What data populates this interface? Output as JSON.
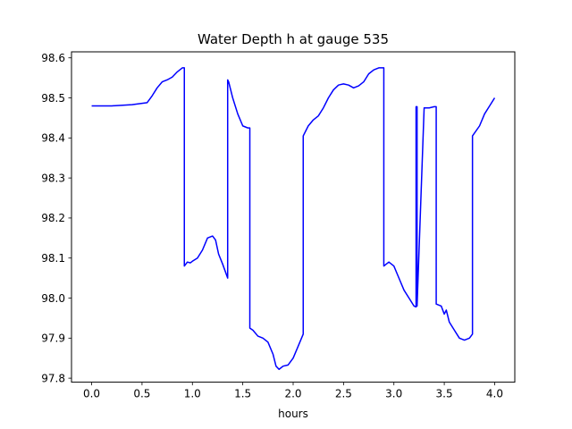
{
  "chart_data": {
    "type": "line",
    "title": "Water Depth h at gauge 535",
    "xlabel": "hours",
    "ylabel": "",
    "xlim": [
      -0.2,
      4.2
    ],
    "ylim": [
      97.79,
      98.615
    ],
    "xticks": [
      0.0,
      0.5,
      1.0,
      1.5,
      2.0,
      2.5,
      3.0,
      3.5,
      4.0
    ],
    "xtick_labels": [
      "0.0",
      "0.5",
      "1.0",
      "1.5",
      "2.0",
      "2.5",
      "3.0",
      "3.5",
      "4.0"
    ],
    "yticks": [
      97.8,
      97.9,
      98.0,
      98.1,
      98.2,
      98.3,
      98.4,
      98.5,
      98.6
    ],
    "ytick_labels": [
      "97.8",
      "97.9",
      "98.0",
      "98.1",
      "98.2",
      "98.3",
      "98.4",
      "98.5",
      "98.6"
    ],
    "grid": false,
    "series": [
      {
        "color": "#0000ff",
        "x": [
          0.0,
          0.2,
          0.4,
          0.55,
          0.6,
          0.65,
          0.7,
          0.75,
          0.8,
          0.85,
          0.9,
          0.92,
          0.92,
          0.95,
          0.98,
          1.0,
          1.05,
          1.1,
          1.15,
          1.2,
          1.23,
          1.26,
          1.3,
          1.35,
          1.35,
          1.36,
          1.4,
          1.45,
          1.5,
          1.55,
          1.57,
          1.57,
          1.6,
          1.65,
          1.7,
          1.75,
          1.8,
          1.83,
          1.86,
          1.9,
          1.95,
          2.0,
          2.05,
          2.1,
          2.1,
          2.15,
          2.2,
          2.25,
          2.3,
          2.35,
          2.4,
          2.45,
          2.5,
          2.55,
          2.6,
          2.65,
          2.7,
          2.75,
          2.8,
          2.85,
          2.9,
          2.9,
          2.95,
          3.0,
          3.05,
          3.1,
          3.15,
          3.2,
          3.22,
          3.22,
          3.23,
          3.23,
          3.3,
          3.35,
          3.4,
          3.42,
          3.42,
          3.47,
          3.5,
          3.52,
          3.55,
          3.6,
          3.65,
          3.7,
          3.75,
          3.78,
          3.78,
          3.85,
          3.9,
          3.95,
          4.0
        ],
        "y": [
          98.48,
          98.48,
          98.483,
          98.488,
          98.505,
          98.525,
          98.54,
          98.545,
          98.552,
          98.565,
          98.575,
          98.575,
          98.08,
          98.09,
          98.088,
          98.092,
          98.1,
          98.12,
          98.15,
          98.155,
          98.145,
          98.11,
          98.085,
          98.05,
          98.545,
          98.54,
          98.5,
          98.46,
          98.43,
          98.425,
          98.425,
          97.925,
          97.92,
          97.905,
          97.9,
          97.89,
          97.86,
          97.83,
          97.822,
          97.83,
          97.833,
          97.85,
          97.88,
          97.91,
          98.405,
          98.43,
          98.445,
          98.455,
          98.475,
          98.5,
          98.52,
          98.532,
          98.535,
          98.532,
          98.525,
          98.53,
          98.54,
          98.56,
          98.57,
          98.575,
          98.575,
          98.08,
          98.09,
          98.08,
          98.05,
          98.02,
          98.0,
          97.98,
          97.978,
          98.478,
          98.478,
          97.98,
          98.475,
          98.475,
          98.478,
          98.478,
          97.985,
          97.98,
          97.96,
          97.97,
          97.94,
          97.92,
          97.9,
          97.895,
          97.9,
          97.91,
          98.405,
          98.43,
          98.46,
          98.48,
          98.5
        ]
      }
    ]
  }
}
